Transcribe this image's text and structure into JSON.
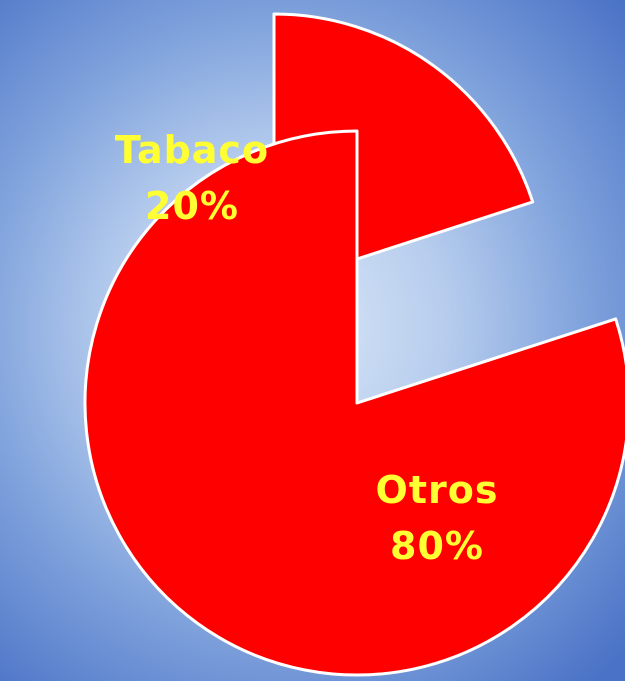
{
  "chart_data": {
    "type": "pie",
    "exploded": true,
    "slices": [
      {
        "label": "Tabaco",
        "value": 20,
        "value_label": "20%"
      },
      {
        "label": "Otros",
        "value": 80,
        "value_label": "80%"
      }
    ],
    "colors": {
      "slice_fill": "#ff0000",
      "slice_stroke": "#ffffff",
      "label_color": "#ffff33"
    },
    "legend": "none"
  }
}
